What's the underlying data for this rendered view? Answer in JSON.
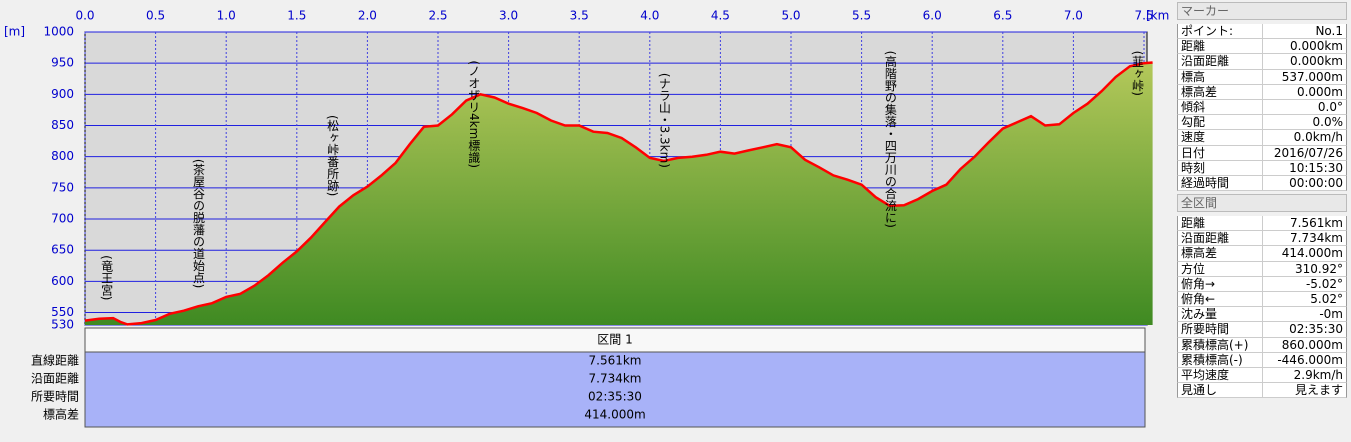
{
  "chart_data": {
    "type": "area",
    "x_unit": "[km]",
    "y_unit": "[m]",
    "xlim": [
      0,
      7.5
    ],
    "ylim": [
      530,
      1000
    ],
    "xticks": [
      {
        "value": 0,
        "label": "0.0"
      },
      0.5,
      {
        "value": 1,
        "label": "1.0"
      },
      1.5,
      {
        "value": 2,
        "label": "2.0"
      },
      2.5,
      {
        "value": 3,
        "label": "3.0"
      },
      3.5,
      {
        "value": 4,
        "label": "4.0"
      },
      4.5,
      {
        "value": 5,
        "label": "5.0"
      },
      5.5,
      {
        "value": 6,
        "label": "6.0"
      },
      6.5,
      {
        "value": 7,
        "label": "7.0"
      },
      7.5
    ],
    "yticks": [
      530,
      550,
      600,
      650,
      700,
      750,
      800,
      850,
      900,
      950,
      1000
    ],
    "color": "#ff0000",
    "grid": true,
    "x": [
      0,
      0.1,
      0.2,
      0.25,
      0.3,
      0.4,
      0.5,
      0.6,
      0.7,
      0.8,
      0.9,
      1.0,
      1.1,
      1.2,
      1.3,
      1.4,
      1.5,
      1.6,
      1.7,
      1.8,
      1.9,
      2.0,
      2.1,
      2.2,
      2.3,
      2.4,
      2.5,
      2.6,
      2.7,
      2.8,
      2.9,
      3.0,
      3.1,
      3.2,
      3.3,
      3.4,
      3.5,
      3.6,
      3.7,
      3.8,
      3.9,
      4.0,
      4.1,
      4.2,
      4.3,
      4.4,
      4.5,
      4.6,
      4.7,
      4.8,
      4.9,
      5.0,
      5.1,
      5.2,
      5.3,
      5.4,
      5.5,
      5.6,
      5.7,
      5.8,
      5.9,
      6.0,
      6.1,
      6.2,
      6.3,
      6.4,
      6.5,
      6.6,
      6.7,
      6.8,
      6.9,
      7.0,
      7.1,
      7.2,
      7.3,
      7.4,
      7.5,
      7.561
    ],
    "values": [
      537,
      540,
      541,
      535,
      531,
      533,
      538,
      548,
      553,
      560,
      565,
      575,
      580,
      593,
      610,
      630,
      648,
      670,
      695,
      720,
      738,
      752,
      770,
      790,
      820,
      848,
      850,
      868,
      890,
      900,
      895,
      885,
      878,
      870,
      858,
      850,
      850,
      840,
      838,
      830,
      815,
      798,
      793,
      798,
      800,
      803,
      808,
      805,
      810,
      815,
      820,
      815,
      795,
      783,
      770,
      763,
      755,
      735,
      721,
      722,
      732,
      745,
      755,
      780,
      800,
      823,
      845,
      855,
      865,
      850,
      852,
      870,
      885,
      905,
      928,
      945,
      950,
      951
    ],
    "annotations": [
      {
        "text": "(竜王宮)",
        "x": 0.15
      },
      {
        "text": "(茶屋谷の脱藩の道始点)",
        "x": 0.8
      },
      {
        "text": "(松ヶ峠番所跡)",
        "x": 1.75
      },
      {
        "text": "(ノオザリ4km標識)",
        "x": 2.75
      },
      {
        "text": "(ナラ山・3.3km)",
        "x": 4.1
      },
      {
        "text": "(高階野の集落・四万川の合流に)",
        "x": 5.7
      },
      {
        "text": "(韮ヶ峠)",
        "x": 7.45
      }
    ]
  },
  "section": {
    "title": "区間 1",
    "rows": [
      [
        "直線距離",
        "7.561km"
      ],
      [
        "沿面距離",
        "7.734km"
      ],
      [
        "所要時間",
        "02:35:30"
      ],
      [
        "標高差",
        "414.000m"
      ]
    ]
  },
  "marker": {
    "title": "マーカー",
    "rows": [
      [
        "ポイント:",
        "No.1"
      ],
      [
        "距離",
        "0.000km"
      ],
      [
        "沿面距離",
        "0.000km"
      ],
      [
        "標高",
        "537.000m"
      ],
      [
        "標高差",
        "0.000m"
      ],
      [
        "傾斜",
        "0.0°"
      ],
      [
        "勾配",
        "0.0%"
      ],
      [
        "速度",
        "0.0km/h"
      ],
      [
        "日付",
        "2016/07/26"
      ],
      [
        "時刻",
        "10:15:30"
      ],
      [
        "経過時間",
        "00:00:00"
      ]
    ]
  },
  "total": {
    "title": "全区間",
    "rows": [
      [
        "距離",
        "7.561km"
      ],
      [
        "沿面距離",
        "7.734km"
      ],
      [
        "標高差",
        "414.000m"
      ],
      [
        "方位",
        "310.92°"
      ],
      [
        "俯角→",
        "-5.02°"
      ],
      [
        "俯角←",
        "5.02°"
      ],
      [
        "沈み量",
        "-0m"
      ],
      [
        "所要時間",
        "02:35:30"
      ],
      [
        "累積標高(+)",
        "860.000m"
      ],
      [
        "累積標高(-)",
        "-446.000m"
      ],
      [
        "平均速度",
        "2.9km/h"
      ],
      [
        "見通し",
        "見えます"
      ]
    ]
  }
}
